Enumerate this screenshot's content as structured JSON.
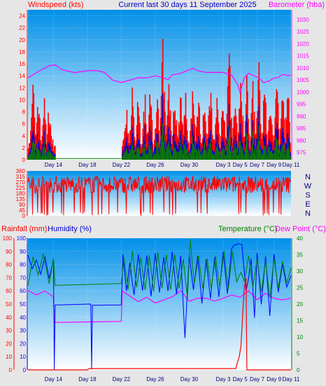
{
  "header": {
    "left_label": "Windspeed (kts)",
    "title": "Current last 30 days 11 September 2025",
    "right_label": "Barometer (hba)"
  },
  "lower_header": {
    "rain_label": "Rainfall (mm)",
    "humidity_label": "Humidity (%)",
    "temp_label": "Temperature (°C)",
    "dew_label": "Dew Point (°C)"
  },
  "colors": {
    "windspeed": "#ff0000",
    "windspeed_mid": "#0000cc",
    "windspeed_low": "#008000",
    "barometer": "#ff00ff",
    "direction": "#ff0000",
    "rainfall": "#ff0000",
    "humidity": "#0000ff",
    "temperature": "#008000",
    "dewpoint": "#ff00ff",
    "plot_bg_top": "#0090e8",
    "plot_bg_bottom": "#ffffff",
    "frame_bg": "#e6e6e6"
  },
  "chart_data": [
    {
      "type": "bar",
      "panel": "wind",
      "xlabel": "",
      "x_tick_labels": [
        "Day 14",
        "Day 18",
        "Day 22",
        "Day 26",
        "Day 30",
        "Day 3",
        "Day 5",
        "Day 7",
        "Day 9",
        "Day 11"
      ],
      "x_tick_days": [
        3,
        7,
        11,
        15,
        19,
        23,
        25,
        27,
        29,
        31
      ],
      "ylim": [
        0,
        25
      ],
      "y_ticks": [
        0,
        2,
        4,
        6,
        8,
        10,
        12,
        14,
        16,
        18,
        20,
        22,
        24
      ],
      "y2lim": [
        972,
        1034
      ],
      "y2_ticks": [
        975,
        980,
        985,
        990,
        995,
        1000,
        1005,
        1010,
        1015,
        1020,
        1025,
        1030
      ],
      "grid": true,
      "wind_gap": [
        3.2,
        11.1
      ],
      "series": [
        {
          "name": "Windspeed",
          "gust_peaks": [
            [
              0.6,
              14
            ],
            [
              1.2,
              13
            ],
            [
              1.9,
              12
            ],
            [
              2.5,
              11
            ],
            [
              11.6,
              11
            ],
            [
              12.3,
              13
            ],
            [
              13.0,
              12
            ],
            [
              13.8,
              13
            ],
            [
              14.4,
              14
            ],
            [
              15.2,
              13
            ],
            [
              15.9,
              21
            ],
            [
              16.6,
              15
            ],
            [
              17.3,
              14
            ],
            [
              18.0,
              14
            ],
            [
              18.6,
              13
            ],
            [
              19.4,
              15
            ],
            [
              20.1,
              14
            ],
            [
              20.8,
              13
            ],
            [
              21.5,
              14
            ],
            [
              22.3,
              12
            ],
            [
              23.0,
              14
            ],
            [
              23.7,
              21
            ],
            [
              24.4,
              12
            ],
            [
              25.1,
              17
            ],
            [
              25.8,
              15
            ],
            [
              26.5,
              14
            ],
            [
              27.2,
              18
            ],
            [
              27.9,
              15
            ],
            [
              28.6,
              14
            ],
            [
              29.3,
              16
            ],
            [
              30.0,
              13
            ],
            [
              30.6,
              16
            ]
          ]
        },
        {
          "name": "Barometer",
          "axis": "right",
          "points": [
            [
              0,
              1006
            ],
            [
              1.5,
              1009
            ],
            [
              2.5,
              1011
            ],
            [
              3.2,
              1011
            ],
            [
              4.0,
              1009
            ],
            [
              5.5,
              1008
            ],
            [
              7.0,
              1009
            ],
            [
              8.0,
              1009
            ],
            [
              9.0,
              1008
            ],
            [
              10.0,
              1005
            ],
            [
              11.0,
              1004
            ],
            [
              12.0,
              1005
            ],
            [
              13.0,
              1006
            ],
            [
              14.0,
              1006
            ],
            [
              15.0,
              1007
            ],
            [
              16.0,
              1006
            ],
            [
              16.5,
              1005
            ],
            [
              17.0,
              1007
            ],
            [
              18.0,
              1008
            ],
            [
              19.0,
              1009
            ],
            [
              19.5,
              1010
            ],
            [
              20.0,
              1009
            ],
            [
              21.0,
              1008
            ],
            [
              22.0,
              1008
            ],
            [
              23.0,
              1008
            ],
            [
              24.0,
              1007
            ],
            [
              24.7,
              1003
            ],
            [
              25.0,
              1000
            ],
            [
              25.5,
              1006
            ],
            [
              26.0,
              1008
            ],
            [
              26.5,
              1007
            ],
            [
              27.2,
              1006
            ],
            [
              27.8,
              1004
            ],
            [
              28.5,
              1005
            ],
            [
              29.0,
              1006
            ],
            [
              29.5,
              1006
            ],
            [
              30.0,
              1007
            ],
            [
              30.6,
              1007
            ],
            [
              31.0,
              1007
            ]
          ]
        }
      ]
    },
    {
      "type": "line",
      "panel": "direction",
      "ylim": [
        0,
        360
      ],
      "y_ticks": [
        0,
        45,
        90,
        135,
        180,
        225,
        270,
        315,
        360
      ],
      "right_labels": [
        "N",
        "W",
        "S",
        "E",
        "N"
      ],
      "series": [
        {
          "name": "Wind direction",
          "typical_value": 250
        }
      ]
    },
    {
      "type": "line",
      "panel": "weather",
      "ylim": [
        0,
        100
      ],
      "y_ticks": [
        0,
        10,
        20,
        30,
        40,
        50,
        60,
        70,
        80,
        90,
        100
      ],
      "y2lim": [
        0,
        40
      ],
      "y2_ticks": [
        0,
        5,
        10,
        15,
        20,
        25,
        30,
        35,
        40
      ],
      "x_tick_labels": [
        "Day 14",
        "Day 18",
        "Day 22",
        "Day 26",
        "Day 30",
        "Day 3",
        "Day 5",
        "Day 7",
        "Day 9",
        "Day 11"
      ],
      "x_tick_days": [
        3,
        7,
        11,
        15,
        19,
        23,
        25,
        27,
        29,
        31
      ],
      "series": [
        {
          "name": "Rainfall",
          "points": [
            [
              0,
              0
            ],
            [
              7.0,
              0
            ],
            [
              7.2,
              1
            ],
            [
              24.5,
              1
            ],
            [
              24.6,
              4
            ],
            [
              24.9,
              10
            ],
            [
              25.1,
              18
            ],
            [
              25.3,
              42
            ],
            [
              25.5,
              63
            ],
            [
              25.7,
              70
            ],
            [
              25.8,
              0
            ],
            [
              31,
              0
            ]
          ]
        },
        {
          "name": "Humidity",
          "points": [
            [
              0,
              88
            ],
            [
              0.5,
              76
            ],
            [
              1,
              84
            ],
            [
              1.5,
              72
            ],
            [
              2,
              86
            ],
            [
              2.5,
              70
            ],
            [
              3.0,
              84
            ],
            [
              3.1,
              0
            ],
            [
              3.2,
              50
            ],
            [
              7.4,
              50
            ],
            [
              7.5,
              0
            ],
            [
              7.6,
              50
            ],
            [
              11.0,
              50
            ],
            [
              11.2,
              88
            ],
            [
              11.6,
              60
            ],
            [
              12,
              82
            ],
            [
              12.5,
              56
            ],
            [
              13,
              88
            ],
            [
              13.5,
              60
            ],
            [
              14,
              86
            ],
            [
              14.5,
              55
            ],
            [
              15,
              88
            ],
            [
              15.5,
              58
            ],
            [
              16,
              86
            ],
            [
              16.5,
              60
            ],
            [
              17,
              90
            ],
            [
              17.5,
              58
            ],
            [
              18,
              86
            ],
            [
              18.5,
              25
            ],
            [
              19,
              88
            ],
            [
              19.5,
              60
            ],
            [
              20,
              86
            ],
            [
              20.5,
              50
            ],
            [
              21,
              84
            ],
            [
              21.5,
              55
            ],
            [
              22,
              86
            ],
            [
              22.5,
              55
            ],
            [
              23,
              90
            ],
            [
              23.5,
              58
            ],
            [
              24,
              92
            ],
            [
              24.3,
              94
            ],
            [
              24.8,
              96
            ],
            [
              25.2,
              95
            ],
            [
              25.7,
              60
            ],
            [
              26.0,
              70
            ],
            [
              26.3,
              85
            ],
            [
              26.7,
              40
            ],
            [
              27,
              88
            ],
            [
              27.5,
              50
            ],
            [
              28,
              86
            ],
            [
              28.5,
              40
            ],
            [
              29,
              88
            ],
            [
              29.5,
              58
            ],
            [
              30,
              80
            ],
            [
              30.5,
              62
            ],
            [
              31,
              72
            ]
          ]
        },
        {
          "name": "Temperature",
          "axis": "right",
          "points": [
            [
              0,
              26
            ],
            [
              0.6,
              34
            ],
            [
              1.2,
              29
            ],
            [
              1.8,
              35
            ],
            [
              2.5,
              26
            ],
            [
              3.0,
              34
            ],
            [
              3.2,
              26
            ],
            [
              11.0,
              26
            ],
            [
              11.3,
              34
            ],
            [
              11.8,
              24
            ],
            [
              12.3,
              36
            ],
            [
              12.8,
              25
            ],
            [
              13.3,
              34
            ],
            [
              13.8,
              24
            ],
            [
              14.3,
              35
            ],
            [
              14.8,
              24
            ],
            [
              15.3,
              36
            ],
            [
              15.8,
              25
            ],
            [
              16.3,
              35
            ],
            [
              16.8,
              24
            ],
            [
              17.3,
              35
            ],
            [
              17.8,
              25
            ],
            [
              18.3,
              34
            ],
            [
              18.8,
              22
            ],
            [
              19.1,
              40
            ],
            [
              19.6,
              26
            ],
            [
              20.1,
              35
            ],
            [
              20.6,
              25
            ],
            [
              21.1,
              34
            ],
            [
              21.6,
              25
            ],
            [
              22.1,
              35
            ],
            [
              22.6,
              25
            ],
            [
              23.1,
              36
            ],
            [
              23.6,
              24
            ],
            [
              24.1,
              36
            ],
            [
              24.6,
              27
            ],
            [
              25.1,
              30
            ],
            [
              25.5,
              27
            ],
            [
              26.0,
              35
            ],
            [
              26.5,
              25
            ],
            [
              27.0,
              34
            ],
            [
              27.5,
              24
            ],
            [
              28.0,
              33
            ],
            [
              28.5,
              22
            ],
            [
              29.0,
              34
            ],
            [
              29.5,
              25
            ],
            [
              30.0,
              33
            ],
            [
              30.5,
              26
            ],
            [
              31.0,
              31
            ]
          ]
        },
        {
          "name": "Dew Point",
          "axis": "right",
          "points": [
            [
              0,
              24
            ],
            [
              1,
              23
            ],
            [
              2,
              24
            ],
            [
              3.0,
              22
            ],
            [
              3.1,
              14.5
            ],
            [
              11.0,
              14.5
            ],
            [
              11.1,
              24
            ],
            [
              13,
              21
            ],
            [
              14,
              22
            ],
            [
              15,
              20
            ],
            [
              16,
              21
            ],
            [
              17,
              22
            ],
            [
              18,
              24
            ],
            [
              19,
              21
            ],
            [
              20,
              22
            ],
            [
              21,
              22
            ],
            [
              22,
              21
            ],
            [
              23,
              22
            ],
            [
              24,
              23
            ],
            [
              25,
              22
            ],
            [
              26,
              24
            ],
            [
              27,
              21
            ],
            [
              28,
              23
            ],
            [
              29,
              22
            ],
            [
              30,
              21
            ],
            [
              31,
              22
            ]
          ]
        }
      ]
    }
  ]
}
